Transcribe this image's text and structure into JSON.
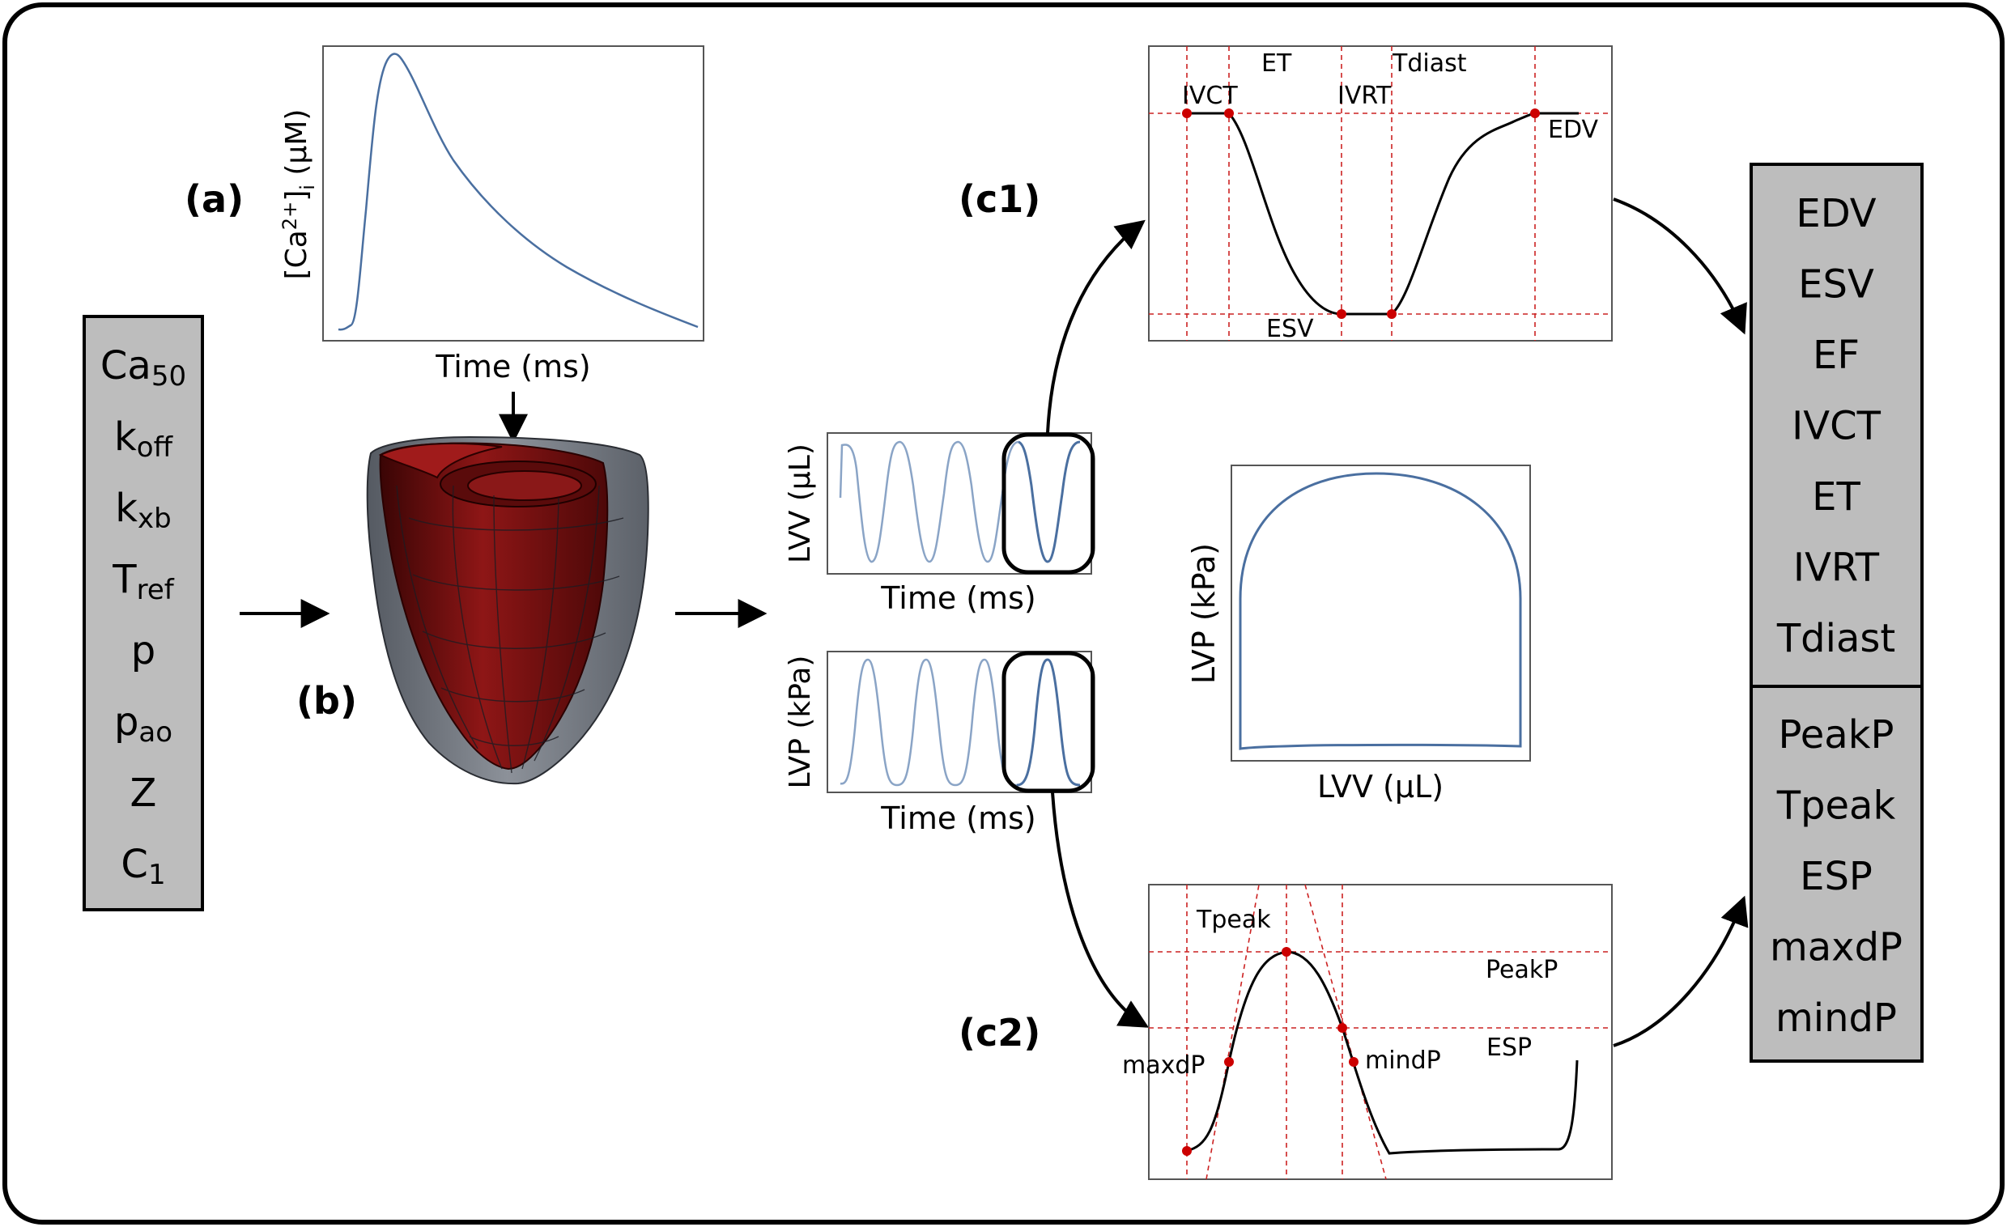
{
  "panels": {
    "a": "(a)",
    "b": "(b)",
    "c1": "(c1)",
    "c2": "(c2)"
  },
  "inputs": {
    "params": [
      {
        "base": "Ca",
        "sub": "50"
      },
      {
        "base": "k",
        "sub": "off"
      },
      {
        "base": "k",
        "sub": "xb"
      },
      {
        "base": "T",
        "sub": "ref"
      },
      {
        "base": "p",
        "sub": ""
      },
      {
        "base": "p",
        "sub": "ao"
      },
      {
        "base": "Z",
        "sub": ""
      },
      {
        "base": "C",
        "sub": "1"
      }
    ]
  },
  "calcium_plot": {
    "xlabel": "Time (ms)",
    "ylabel_parts": [
      "[Ca",
      "2+",
      "]",
      "i",
      " (μM)"
    ]
  },
  "lvv_trace": {
    "xlabel": "Time (ms)",
    "ylabel": "LVV (μL)"
  },
  "lvp_trace": {
    "xlabel": "Time (ms)",
    "ylabel": "LVP (kPa)"
  },
  "pv_loop": {
    "xlabel": "LVV (μL)",
    "ylabel": "LVP (kPa)"
  },
  "volume_features": {
    "labels": {
      "et": "ET",
      "tdiast": "Tdiast",
      "ivct": "IVCT",
      "ivrt": "IVRT",
      "edv": "EDV",
      "esv": "ESV"
    }
  },
  "pressure_features": {
    "labels": {
      "tpeak": "Tpeak",
      "peakp": "PeakP",
      "maxdp": "maxdP",
      "mindp": "mindP",
      "esp": "ESP"
    }
  },
  "outputs": {
    "volume_group": [
      "EDV",
      "ESV",
      "EF",
      "IVCT",
      "ET",
      "IVRT",
      "Tdiast"
    ],
    "pressure_group": [
      "PeakP",
      "Tpeak",
      "ESP",
      "maxdP",
      "mindP"
    ]
  },
  "colors": {
    "trace": "#4a6fa0",
    "trace_light": "#8aa4c6",
    "guide": "#cc2222",
    "marker": "#cc0000",
    "box_fill": "#bdbdbd",
    "heart_outer": "#6f747c",
    "heart_inner": "#7a1010"
  }
}
